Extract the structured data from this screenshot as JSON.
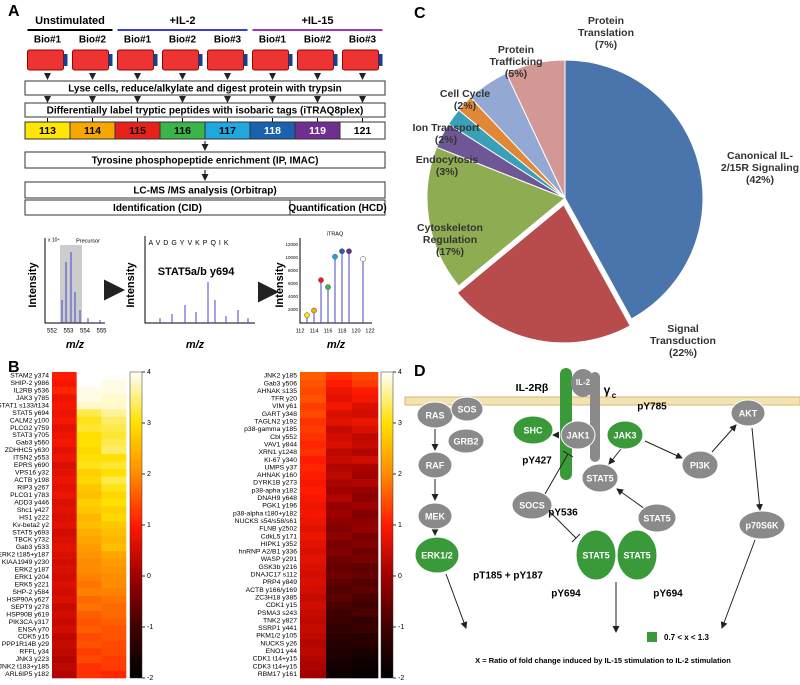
{
  "panel_a": {
    "label": "A",
    "groups": [
      {
        "name": "Unstimulated",
        "color": "#000000"
      },
      {
        "name": "+IL-2",
        "color": "#3b3bd6"
      },
      {
        "name": "+IL-15",
        "color": "#9b35c8"
      }
    ],
    "replicates": [
      "Bio#1",
      "Bio#2",
      "Bio#1",
      "Bio#2",
      "Bio#3",
      "Bio#1",
      "Bio#2",
      "Bio#3"
    ],
    "steps": {
      "lysis": "Lyse cells, reduce/alkylate and digest protein with trypsin",
      "labeling": "Differentially label tryptic peptides with isobaric tags (iTRAQ8plex)",
      "enrichment": "Tyrosine phosphopeptide enrichment (IP, IMAC)",
      "analysis": "LC-MS /MS analysis (Orbitrap)",
      "identification": "Identification (CID)",
      "quantification": "Quantification (HCD)"
    },
    "tags": [
      {
        "label": "113",
        "color": "#ffe600"
      },
      {
        "label": "114",
        "color": "#f7a800"
      },
      {
        "label": "115",
        "color": "#e8211d"
      },
      {
        "label": "116",
        "color": "#3ab54a"
      },
      {
        "label": "117",
        "color": "#1ea8df"
      },
      {
        "label": "118",
        "color": "#1b62ae"
      },
      {
        "label": "119",
        "color": "#6f2f91"
      },
      {
        "label": "121",
        "color": "#ffffff"
      }
    ],
    "spectra": {
      "y_label": "Intensity",
      "x_label": "m/z",
      "precursor": {
        "inset": "Precursor",
        "scale": "x 10⁴",
        "xticks": [
          552,
          553,
          554,
          555
        ]
      },
      "peptide": {
        "title": "STAT5a/b y694",
        "sequence": "AVDGYVKPQIK"
      },
      "reporter": {
        "inset": "iTRAQ",
        "xticks": [
          112,
          114,
          116,
          118,
          120,
          122
        ],
        "yticks": [
          2000,
          4000,
          6000,
          8000,
          10000,
          12000
        ]
      }
    }
  },
  "panel_b": {
    "label": "B",
    "colorbar_ticks": [
      4,
      3,
      2,
      1,
      0,
      -1,
      -2
    ],
    "left": {
      "rows": [
        "STAM2 y374",
        "SHIP-2 y986",
        "IL2RB y536",
        "JAK3 y785",
        "STAT1 s133/t134",
        "STAT5 y694",
        "CALM2 y100",
        "PLCG2 y759",
        "STAT3 y705",
        "Gab3 y560",
        "ZDHHC5 y630",
        "ITSN2 y553",
        "EPRS y690",
        "VPS16 y32",
        "ACTB y198",
        "RIP3 y267",
        "PLCG1 y783",
        "ADD3 y446",
        "Shc1 y427",
        "HS1 y222",
        "Kv-beta2 y2",
        "STAT5 y693",
        "TBCK y732",
        "Gab3 y533",
        "ERK2 t185+y187",
        "KIAA1949 y230",
        "ERK2 y187",
        "ERK1 y204",
        "ERK5 y221",
        "SHP-2 y584",
        "HSP90A y627",
        "SEPT9 y278",
        "HSP90B y619",
        "PIK3CA y317",
        "ENSA y70",
        "CDK5 y15",
        "PPP1R14B y29",
        "RFFL y34",
        "JNK3 y223",
        "JNK2 t183+y185",
        "ARL6IP5 y182"
      ],
      "values": [
        [
          1.0,
          4.0,
          4.0
        ],
        [
          0.9,
          4.0,
          3.9
        ],
        [
          1.1,
          3.9,
          3.9
        ],
        [
          0.8,
          3.9,
          3.8
        ],
        [
          0.9,
          3.8,
          3.8
        ],
        [
          0.8,
          3.3,
          3.6
        ],
        [
          0.9,
          3.1,
          3.4
        ],
        [
          0.7,
          3.2,
          3.3
        ],
        [
          0.8,
          3.0,
          3.2
        ],
        [
          0.9,
          3.0,
          3.3
        ],
        [
          0.7,
          2.9,
          3.4
        ],
        [
          0.8,
          3.0,
          3.0
        ],
        [
          0.6,
          3.1,
          3.2
        ],
        [
          0.7,
          2.8,
          3.0
        ],
        [
          0.8,
          2.9,
          3.3
        ],
        [
          0.7,
          2.7,
          3.1
        ],
        [
          0.8,
          2.6,
          2.9
        ],
        [
          0.6,
          2.8,
          3.0
        ],
        [
          0.7,
          2.7,
          2.8
        ],
        [
          0.6,
          2.5,
          2.9
        ],
        [
          0.7,
          2.6,
          2.7
        ],
        [
          0.5,
          2.4,
          2.6
        ],
        [
          0.6,
          2.3,
          2.5
        ],
        [
          0.7,
          2.2,
          2.6
        ],
        [
          0.6,
          2.1,
          2.3
        ],
        [
          0.5,
          2.0,
          2.2
        ],
        [
          0.6,
          2.0,
          2.1
        ],
        [
          0.5,
          1.9,
          2.0
        ],
        [
          0.6,
          1.8,
          2.0
        ],
        [
          0.5,
          1.9,
          1.9
        ],
        [
          0.6,
          1.7,
          1.8
        ],
        [
          0.4,
          1.8,
          1.7
        ],
        [
          0.5,
          1.6,
          1.7
        ],
        [
          0.4,
          1.5,
          1.6
        ],
        [
          0.5,
          1.6,
          1.5
        ],
        [
          0.3,
          1.4,
          1.5
        ],
        [
          0.4,
          1.5,
          1.4
        ],
        [
          0.3,
          1.3,
          1.4
        ],
        [
          0.2,
          1.4,
          1.3
        ],
        [
          0.3,
          1.2,
          1.3
        ],
        [
          0.2,
          1.2,
          1.1
        ]
      ]
    },
    "right": {
      "rows": [
        "JNK2 y185",
        "Gab3 y506",
        "AHNAK s135",
        "TFR y20",
        "VIM y61",
        "GART y348",
        "TAGLN2 y192",
        "p38-gamma y185",
        "Cbl y552",
        "VAV1 y844",
        "XRN1 y1248",
        "KI-67 y340",
        "UMPS y37",
        "AHNAK y160",
        "DYRK1B y273",
        "p38-apha y182",
        "DNAH9 y648",
        "PGK1 y196",
        "p38-alpha t180+y182",
        "NUCKS s54/s58/s61",
        "FLNB y2502",
        "CdkL5 y171",
        "HIPK1 y352",
        "hnRNP A2/B1 y336",
        "WASP y291",
        "GSK3b y216",
        "DNAJC17 s112",
        "PRP4 y849",
        "ACTB y166/y169",
        "ZC3H18 y385",
        "CDK1 y15",
        "PSMA3 s243",
        "TNK2 y827",
        "SSRP1 y441",
        "PKM1/2 y105",
        "NUCKS y26",
        "ENO1 y44",
        "CDK1 t14+y15",
        "CDK3 t14+y15",
        "RBM17 y161"
      ],
      "values": [
        [
          1.6,
          1.2,
          1.4
        ],
        [
          1.5,
          1.0,
          1.3
        ],
        [
          1.4,
          0.8,
          1.0
        ],
        [
          1.5,
          0.7,
          0.9
        ],
        [
          1.3,
          0.9,
          0.6
        ],
        [
          1.4,
          0.6,
          0.5
        ],
        [
          1.2,
          0.7,
          0.8
        ],
        [
          1.3,
          0.4,
          0.6
        ],
        [
          1.2,
          0.5,
          0.3
        ],
        [
          1.1,
          0.6,
          0.4
        ],
        [
          1.2,
          0.3,
          0.2
        ],
        [
          1.0,
          0.4,
          0.5
        ],
        [
          1.1,
          0.2,
          0.1
        ],
        [
          1.0,
          0.3,
          0.0
        ],
        [
          0.9,
          0.1,
          0.2
        ],
        [
          1.0,
          0.0,
          -0.1
        ],
        [
          0.9,
          0.2,
          -0.2
        ],
        [
          0.8,
          -0.1,
          0.0
        ],
        [
          0.9,
          0.0,
          -0.3
        ],
        [
          0.8,
          -0.2,
          -0.2
        ],
        [
          0.7,
          -0.3,
          -0.1
        ],
        [
          0.8,
          -0.2,
          -0.4
        ],
        [
          0.7,
          -0.4,
          -0.3
        ],
        [
          0.6,
          -0.3,
          -0.5
        ],
        [
          0.7,
          -0.5,
          -0.4
        ],
        [
          0.6,
          -0.6,
          -0.7
        ],
        [
          0.5,
          -0.5,
          -0.6
        ],
        [
          0.6,
          -0.7,
          -0.8
        ],
        [
          0.5,
          -0.8,
          -0.7
        ],
        [
          0.4,
          -0.7,
          -0.9
        ],
        [
          0.5,
          -0.9,
          -1.0
        ],
        [
          0.4,
          -1.0,
          -0.9
        ],
        [
          0.3,
          -1.1,
          -1.2
        ],
        [
          0.4,
          -1.2,
          -1.1
        ],
        [
          0.3,
          -1.3,
          -1.4
        ],
        [
          0.2,
          -1.4,
          -1.3
        ],
        [
          0.3,
          -1.5,
          -1.6
        ],
        [
          0.2,
          -1.6,
          -1.7
        ],
        [
          0.1,
          -1.7,
          -1.8
        ],
        [
          0.0,
          -1.8,
          -1.9
        ]
      ]
    }
  },
  "panel_c": {
    "label": "C",
    "chart_data": {
      "type": "pie",
      "categories": [
        "Canonical IL-2/15R Signaling",
        "Signal Transduction",
        "Cytoskeleton Regulation",
        "Endocytosis",
        "Ion Transport",
        "Cell Cycle",
        "Protein Trafficking",
        "Protein Translation"
      ],
      "values": [
        42,
        22,
        17,
        3,
        2,
        2,
        5,
        7
      ],
      "value_labels": [
        "(42%)",
        "(22%)",
        "(17%)",
        "(3%)",
        "(2%)",
        "(2%)",
        "(5%)",
        "(7%)"
      ],
      "colors": [
        "#4a74ac",
        "#b84b4b",
        "#8eac52",
        "#6f5796",
        "#3aa0b8",
        "#e08838",
        "#93a9d3",
        "#d39896"
      ]
    }
  },
  "panel_d": {
    "label": "D",
    "ligand": "IL-2",
    "receptor_beta": "IL-2Rβ",
    "gamma": "γ",
    "gamma_sub": "c",
    "nodes": [
      {
        "label": "RAS",
        "active": false
      },
      {
        "label": "SOS",
        "active": false
      },
      {
        "label": "GRB2",
        "active": false
      },
      {
        "label": "SHC",
        "active": true
      },
      {
        "label": "JAK1",
        "active": false
      },
      {
        "label": "JAK3",
        "active": true
      },
      {
        "label": "PI3K",
        "active": false
      },
      {
        "label": "AKT",
        "active": false
      },
      {
        "label": "RAF",
        "active": false
      },
      {
        "label": "MEK",
        "active": false
      },
      {
        "label": "ERK1/2",
        "active": true
      },
      {
        "label": "STAT5",
        "active": false
      },
      {
        "label": "SOCS",
        "active": false
      },
      {
        "label": "STAT5",
        "active": false
      },
      {
        "label": "p70S6K",
        "active": false
      },
      {
        "label": "STAT5",
        "active": true
      },
      {
        "label": "STAT5",
        "active": true
      }
    ],
    "sites": [
      "pY785",
      "pY427",
      "pY536",
      "pT185 + pY187",
      "pY694",
      "pY694"
    ],
    "legend": {
      "range": "0.7 < x < 1.3",
      "color": "#3a9a3a"
    },
    "footnote": "X = Ratio of fold change induced by IL-15 stimulation to IL-2 stimulation"
  }
}
